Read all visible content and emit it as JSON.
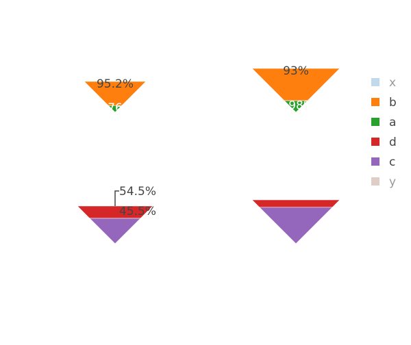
{
  "colors": {
    "x": "#8fb8db",
    "b": "#ff7f0e",
    "a": "#2ca02c",
    "d": "#d62728",
    "c": "#9467bd",
    "y": "#c4a59b",
    "legend_text_active": "#444444",
    "legend_text_inactive": "#999999",
    "label_light": "#ffffff",
    "label_dark": "#444444"
  },
  "legend": {
    "items": [
      {
        "key": "x",
        "label": "x",
        "inactive": true
      },
      {
        "key": "b",
        "label": "b",
        "inactive": false
      },
      {
        "key": "a",
        "label": "a",
        "inactive": false
      },
      {
        "key": "d",
        "label": "d",
        "inactive": false
      },
      {
        "key": "c",
        "label": "c",
        "inactive": false
      },
      {
        "key": "y",
        "label": "y",
        "inactive": true
      }
    ]
  },
  "chart_data": [
    {
      "type": "funnelarea",
      "slices": [
        {
          "key": "b",
          "value": 95.2,
          "label": "95.2%"
        },
        {
          "key": "a",
          "value": 4.76,
          "label": "4.76%"
        }
      ]
    },
    {
      "type": "funnelarea",
      "slices": [
        {
          "key": "b",
          "value": 93.0,
          "label": "93%"
        },
        {
          "key": "a",
          "value": 6.98,
          "label": "6.98%"
        }
      ]
    },
    {
      "type": "funnelarea",
      "slices": [
        {
          "key": "d",
          "value": 54.5,
          "label": "54.5%"
        },
        {
          "key": "c",
          "value": 45.5,
          "label": "45.5%"
        }
      ]
    },
    {
      "type": "funnelarea",
      "slices": [
        {
          "key": "d",
          "value": 31,
          "label": ""
        },
        {
          "key": "c",
          "value": 69,
          "label": ""
        }
      ]
    }
  ]
}
